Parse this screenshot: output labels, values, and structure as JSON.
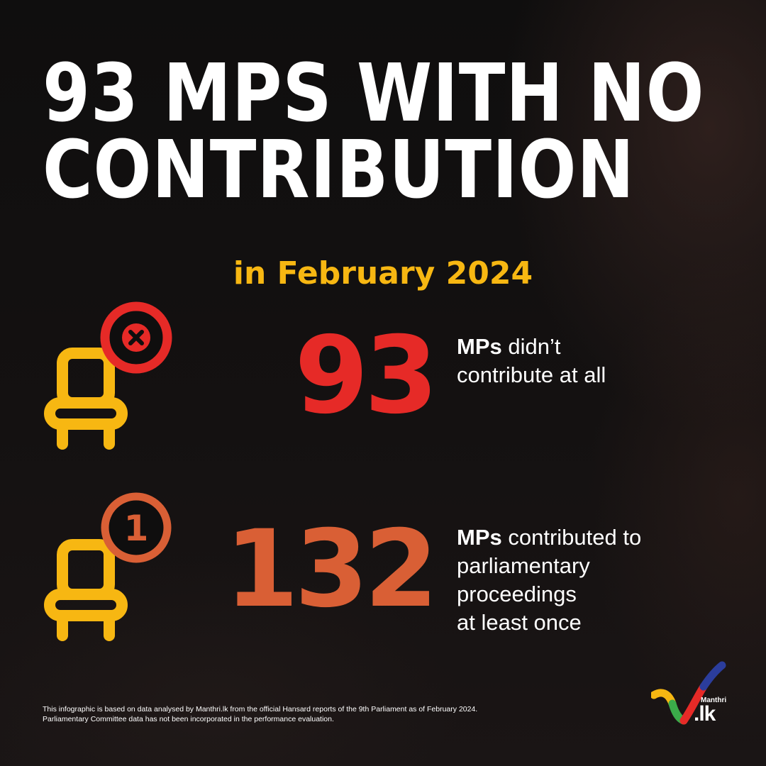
{
  "headline": {
    "line1": "93 MPS WITH NO",
    "line2": "CONTRIBUTION"
  },
  "subheadline": "in February 2024",
  "stats": [
    {
      "number": "93",
      "highlight": "MPs",
      "line1_rest": " didn’t",
      "line2": "contribute at all",
      "icon": "chair-with-x-icon",
      "color": "#e62a27"
    },
    {
      "number": "132",
      "highlight": "MPs",
      "line1_rest": " contributed to",
      "line2": "parliamentary",
      "line3": "proceedings",
      "line4": "at least once",
      "icon": "chair-with-one-icon",
      "badge_text": "1",
      "color": "#d95f35"
    }
  ],
  "footnote": {
    "line1": "This infographic is based on data analysed by Manthri.lk from the official Hansard reports of the 9th Parliament as of February 2024.",
    "line2": "Parliamentary Committee data has not been incorporated in the performance evaluation."
  },
  "logo": {
    "small": "Manthri",
    "big": ".lk"
  },
  "colors": {
    "accent_yellow": "#f7b712",
    "chair": "#f7b712",
    "red": "#e62a27",
    "orange": "#d95f35"
  }
}
